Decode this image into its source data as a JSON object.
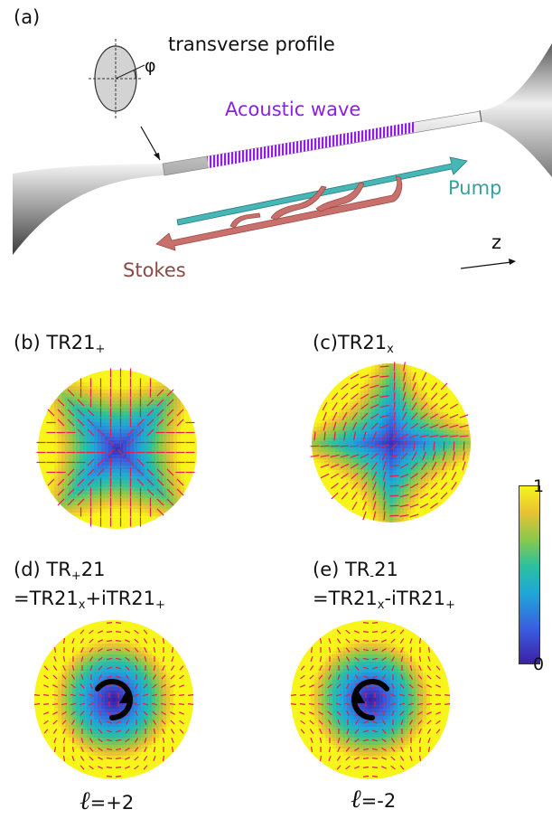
{
  "panel_a": {
    "label": "(a)",
    "transverse_label": "transverse profile",
    "phi_symbol": "φ",
    "acoustic_label": "Acoustic wave",
    "pump_label": "Pump",
    "stokes_label": "Stokes",
    "z_label": "z",
    "colors": {
      "acoustic": "#8e1fe0",
      "pump": "#46b6b6",
      "stokes": "#c9706c"
    }
  },
  "panel_b": {
    "label": "(b) TR21",
    "sub": "+"
  },
  "panel_c": {
    "label": "(c)TR21",
    "sub": "x"
  },
  "panel_d": {
    "label_line1_a": "(d) TR",
    "label_line1_sub": "+",
    "label_line1_b": "21",
    "line2_a": "=TR21",
    "line2_sub1": "x",
    "line2_b": "+iTR21",
    "line2_sub2": "+",
    "l_symbol": "ℓ",
    "l_value": "=+2"
  },
  "panel_e": {
    "label_line1_a": "(e) TR",
    "label_line1_sub": "-",
    "label_line1_b": "21",
    "line2_a": "=TR21",
    "line2_sub1": "x",
    "line2_b": "-iTR21",
    "line2_sub2": "+",
    "l_symbol": "ℓ",
    "l_value": "=-2"
  },
  "colorbar": {
    "max_label": "1",
    "min_label": "0"
  }
}
